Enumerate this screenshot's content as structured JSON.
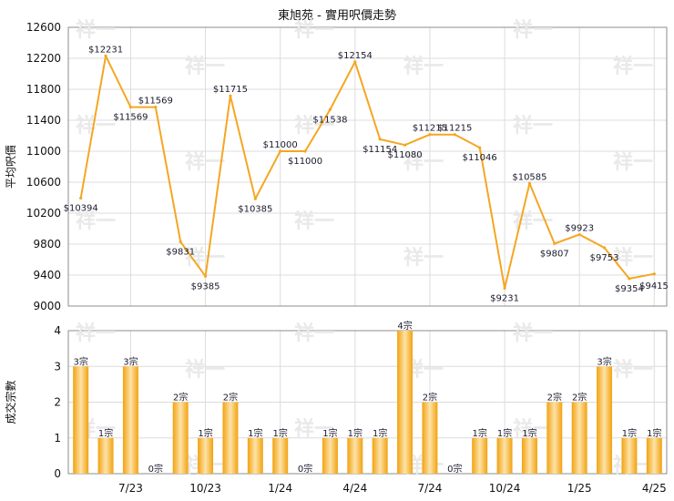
{
  "chart_data": {
    "title": "東旭苑 - 實用呎價走勢",
    "x_tick_labels": [
      "7/23",
      "10/23",
      "1/24",
      "4/24",
      "7/24",
      "10/24",
      "1/25",
      "4/25"
    ],
    "line_chart": {
      "type": "line",
      "ylabel": "平均呎價",
      "ylim": [
        9000,
        12600
      ],
      "yticks": [
        9000,
        9400,
        9800,
        10200,
        10600,
        11000,
        11400,
        11800,
        12200,
        12600
      ],
      "values": [
        10394,
        12231,
        11569,
        11569,
        9831,
        9385,
        11715,
        10385,
        11000,
        11000,
        11538,
        12154,
        11154,
        11080,
        11215,
        11215,
        11046,
        9231,
        10585,
        9807,
        9923,
        9753,
        9354,
        9415
      ],
      "labels": [
        "$10394",
        "$12231",
        "$11569",
        "$11569",
        "$9831",
        "$9385",
        "$11715",
        "$10385",
        "$11000",
        "$11000",
        "$11538",
        "$12154",
        "$11154",
        "$11080",
        "$11215",
        "$11215",
        "$11046",
        "$9231",
        "$10585",
        "$9807",
        "$9923",
        "$9753",
        "$9354",
        ""
      ],
      "color": "#f5a623"
    },
    "bar_chart": {
      "type": "bar",
      "ylabel": "成交宗數",
      "ylim": [
        0,
        4
      ],
      "yticks": [
        0,
        1,
        2,
        3,
        4
      ],
      "values": [
        3,
        1,
        3,
        0,
        2,
        1,
        2,
        1,
        1,
        0,
        1,
        1,
        1,
        4,
        2,
        0,
        1,
        1,
        1,
        2,
        2,
        3,
        1,
        1
      ],
      "labels": [
        "3宗",
        "1宗",
        "3宗",
        "0宗",
        "2宗",
        "1宗",
        "2宗",
        "1宗",
        "1宗",
        "0宗",
        "1宗",
        "1宗",
        "1宗",
        "4宗",
        "2宗",
        "0宗",
        "1宗",
        "1宗",
        "1宗",
        "2宗",
        "2宗",
        "3宗",
        "1宗",
        "1宗"
      ],
      "color": "#f5a623"
    }
  },
  "data_labels": {
    "last_point": "$9415"
  },
  "watermark": "祥一"
}
